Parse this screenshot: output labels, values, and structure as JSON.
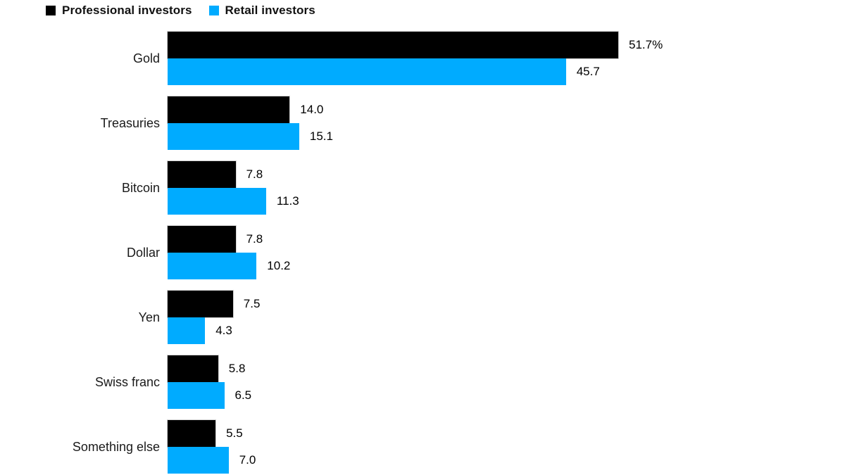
{
  "chart_data": {
    "type": "bar",
    "orientation": "horizontal",
    "title": "",
    "xlabel": "",
    "ylabel": "",
    "xlim": [
      0,
      51.7
    ],
    "grid": false,
    "legend_position": "top-left",
    "unit": "%",
    "categories": [
      "Gold",
      "Treasuries",
      "Bitcoin",
      "Dollar",
      "Yen",
      "Swiss franc",
      "Something else"
    ],
    "series": [
      {
        "name": "Professional investors",
        "color": "#000000",
        "values": [
          51.7,
          14.0,
          7.8,
          7.8,
          7.5,
          5.8,
          5.5
        ],
        "value_labels": [
          "51.7%",
          "14.0",
          "7.8",
          "7.8",
          "7.5",
          "5.8",
          "5.5"
        ]
      },
      {
        "name": "Retail investors",
        "color": "#00abff",
        "values": [
          45.7,
          15.1,
          11.3,
          10.2,
          4.3,
          6.5,
          7.0
        ],
        "value_labels": [
          "45.7",
          "15.1",
          "11.3",
          "10.2",
          "4.3",
          "6.5",
          "7.0"
        ]
      }
    ]
  },
  "legend": {
    "items": [
      {
        "label": "Professional investors",
        "color": "#000000"
      },
      {
        "label": "Retail investors",
        "color": "#00abff"
      }
    ]
  }
}
